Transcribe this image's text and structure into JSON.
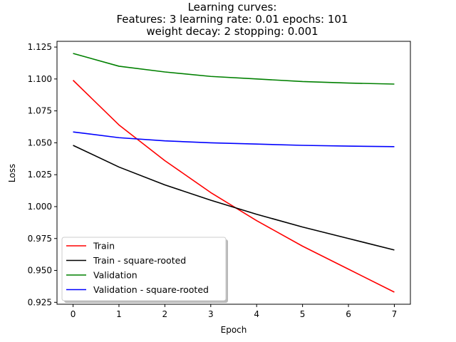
{
  "chart_data": {
    "type": "line",
    "title_lines": [
      "Learning curves:",
      "Features: 3 learning rate: 0.01 epochs: 101",
      "weight decay: 2 stopping: 0.001"
    ],
    "xlabel": "Epoch",
    "ylabel": "Loss",
    "xlim": [
      -0.35,
      7.35
    ],
    "ylim": [
      0.9235,
      1.1295
    ],
    "x": [
      0,
      1,
      2,
      3,
      4,
      5,
      6,
      7
    ],
    "xticks": [
      "0",
      "1",
      "2",
      "3",
      "4",
      "5",
      "6",
      "7"
    ],
    "yticks": [
      "0.925",
      "0.950",
      "0.975",
      "1.000",
      "1.025",
      "1.050",
      "1.075",
      "1.100",
      "1.125"
    ],
    "ytick_values": [
      0.925,
      0.95,
      0.975,
      1.0,
      1.025,
      1.05,
      1.075,
      1.1,
      1.125
    ],
    "grid": false,
    "legend_position": "lower-left",
    "series": [
      {
        "name": "Train",
        "color": "#ff0000",
        "values": [
          1.099,
          1.064,
          1.036,
          1.011,
          0.989,
          0.969,
          0.951,
          0.933
        ]
      },
      {
        "name": "Train - square-rooted",
        "color": "#000000",
        "values": [
          1.048,
          1.031,
          1.017,
          1.005,
          0.994,
          0.984,
          0.975,
          0.966
        ]
      },
      {
        "name": "Validation",
        "color": "#008000",
        "values": [
          1.12,
          1.11,
          1.1055,
          1.102,
          1.1,
          1.098,
          1.0968,
          1.096
        ]
      },
      {
        "name": "Validation - square-rooted",
        "color": "#0000ff",
        "values": [
          1.0585,
          1.054,
          1.0515,
          1.05,
          1.049,
          1.048,
          1.0474,
          1.047
        ]
      }
    ]
  }
}
